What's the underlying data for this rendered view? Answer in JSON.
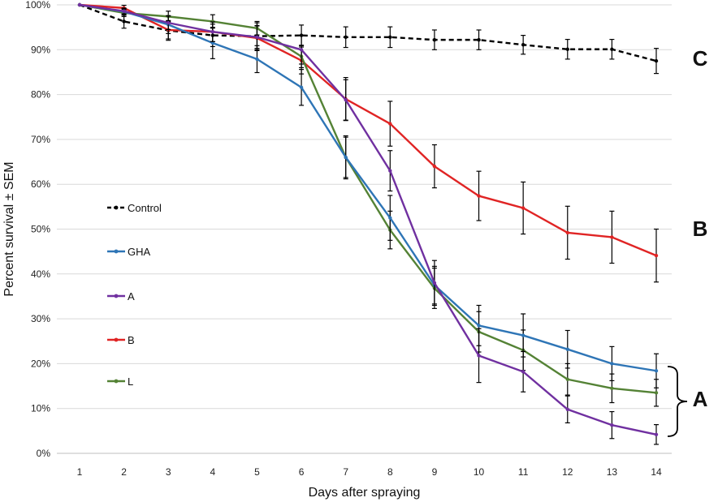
{
  "chart_data": {
    "type": "line",
    "xlabel": "Days after spraying",
    "ylabel": "Percent  survival ± SEM",
    "ylim": [
      0,
      100
    ],
    "xlim": [
      1,
      14
    ],
    "grid": "horizontal",
    "x": [
      1,
      2,
      3,
      4,
      5,
      6,
      7,
      8,
      9,
      10,
      11,
      12,
      13,
      14
    ],
    "y_ticks": [
      "0%",
      "10%",
      "20%",
      "30%",
      "40%",
      "50%",
      "60%",
      "70%",
      "80%",
      "90%",
      "100%"
    ],
    "legend_placement": "center-left",
    "series": [
      {
        "name": "Control",
        "color": "#000000",
        "dashed": true,
        "values": [
          100,
          96.3,
          94.3,
          93.2,
          93,
          93.2,
          92.8,
          92.8,
          92.2,
          92.2,
          91.1,
          90.1,
          90.1,
          87.5
        ],
        "errors": [
          0,
          1.5,
          2.2,
          2.5,
          3,
          2.3,
          2.3,
          2.3,
          2.2,
          2.2,
          2.1,
          2.2,
          2.2,
          2.8
        ]
      },
      {
        "name": "GHA",
        "color": "#2e75b6",
        "dashed": false,
        "values": [
          100,
          98.5,
          95.6,
          91.5,
          87.9,
          81.6,
          66,
          52.5,
          37.5,
          28.5,
          26.3,
          23.2,
          20,
          18.4
        ],
        "errors": [
          0,
          0.8,
          2,
          3.5,
          3,
          4,
          4.8,
          5,
          4.2,
          4.5,
          4.8,
          4.2,
          3.8,
          3.8
        ]
      },
      {
        "name": "A",
        "color": "#7030a0",
        "dashed": false,
        "values": [
          100,
          98.6,
          96,
          94,
          92.8,
          90,
          78.8,
          63,
          38,
          21.8,
          18.2,
          9.8,
          6.3,
          4.2
        ],
        "errors": [
          0,
          0.6,
          1.5,
          2.2,
          2.5,
          3.2,
          4.5,
          4.5,
          5,
          6,
          4.5,
          3,
          3,
          2.2
        ]
      },
      {
        "name": "B",
        "color": "#e02424",
        "dashed": false,
        "values": [
          100,
          99.3,
          94.4,
          94,
          92.6,
          87.6,
          79,
          73.5,
          64,
          57.4,
          54.7,
          49.2,
          48.2,
          44.1
        ],
        "errors": [
          0,
          0.6,
          2,
          2.2,
          2.8,
          3,
          4.8,
          5,
          4.8,
          5.5,
          5.8,
          5.9,
          5.8,
          5.9
        ]
      },
      {
        "name": "L",
        "color": "#548235",
        "dashed": false,
        "values": [
          100,
          98.2,
          97.4,
          96.3,
          94.8,
          88.5,
          66,
          49.8,
          36.8,
          27.1,
          23,
          16.5,
          14.5,
          13.5
        ],
        "errors": [
          0,
          0.8,
          1.2,
          1.5,
          1.5,
          2.5,
          4.5,
          4.2,
          4.5,
          4.5,
          4.5,
          3.5,
          3.2,
          3
        ]
      }
    ],
    "annotations": [
      {
        "text": "C",
        "series": "Control"
      },
      {
        "text": "B",
        "series": "B"
      },
      {
        "text": "A",
        "series": [
          "GHA",
          "A",
          "L"
        ]
      }
    ]
  }
}
